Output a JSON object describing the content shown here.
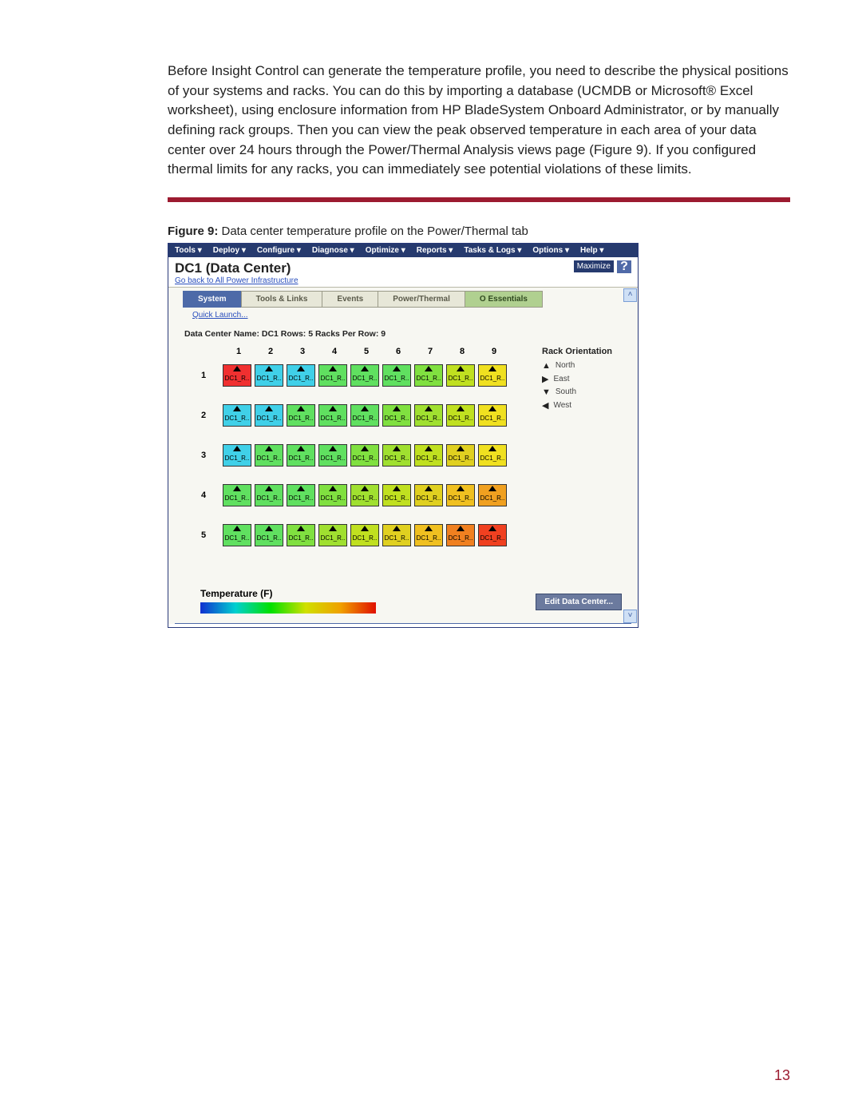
{
  "paragraph": "Before Insight Control can generate the temperature profile, you need to describe the physical positions of your systems and racks. You can do this by importing a database (UCMDB or Microsoft® Excel worksheet), using enclosure information from HP BladeSystem Onboard Administrator, or by manually defining rack groups. Then you can view the peak observed temperature in each area of your data center over 24 hours through the Power/Thermal Analysis views page (Figure 9). If you configured thermal limits for any racks, you can immediately see potential violations of these limits.",
  "caption_bold": "Figure 9:",
  "caption_rest": " Data center temperature profile on the Power/Thermal tab",
  "menubar": [
    "Tools ▾",
    "Deploy ▾",
    "Configure ▾",
    "Diagnose ▾",
    "Optimize ▾",
    "Reports ▾",
    "Tasks & Logs ▾",
    "Options ▾",
    "Help ▾"
  ],
  "title": "DC1 (Data Center)",
  "sublink": "Go back to All Power Infrastructure",
  "maximize": "Maximize",
  "help_icon": "?",
  "tabs": [
    {
      "label": "System",
      "cls": "active"
    },
    {
      "label": "Tools & Links",
      "cls": ""
    },
    {
      "label": "Events",
      "cls": ""
    },
    {
      "label": "Power/Thermal",
      "cls": ""
    },
    {
      "label": "O Essentials",
      "cls": "green"
    }
  ],
  "quick_launch": "Quick Launch...",
  "meta_line": "Data Center Name:   DC1    Rows:   5    Racks Per Row:   9",
  "cols": [
    "1",
    "2",
    "3",
    "4",
    "5",
    "6",
    "7",
    "8",
    "9"
  ],
  "row_labels": [
    "1",
    "2",
    "3",
    "4",
    "5"
  ],
  "rack_label": "DC1_R..",
  "rack_colors": {
    "rows": [
      [
        "#f03030",
        "#40d0e8",
        "#40d0e8",
        "#60e060",
        "#60e060",
        "#60e060",
        "#80e040",
        "#c0e020",
        "#f0e020"
      ],
      [
        "#40d0e8",
        "#40d0e8",
        "#60e060",
        "#60e060",
        "#60e060",
        "#80e040",
        "#a0e030",
        "#c0e020",
        "#f0e020"
      ],
      [
        "#40d0e8",
        "#60e060",
        "#60e060",
        "#60e060",
        "#80e040",
        "#a0e030",
        "#c0e020",
        "#e0d020",
        "#f0e020"
      ],
      [
        "#60e060",
        "#60e060",
        "#60e060",
        "#80e040",
        "#a0e030",
        "#c0e020",
        "#e0d020",
        "#f0c020",
        "#f0a020"
      ],
      [
        "#60e060",
        "#60e060",
        "#80e040",
        "#a0e030",
        "#c0e020",
        "#e0d020",
        "#f0c020",
        "#f08020",
        "#f04020"
      ]
    ]
  },
  "legend_title": "Rack Orientation",
  "legend_items": [
    {
      "sym": "▲",
      "label": "North"
    },
    {
      "sym": "▶",
      "label": "East"
    },
    {
      "sym": "▼",
      "label": "South"
    },
    {
      "sym": "◀",
      "label": "West"
    }
  ],
  "temp_label": "Temperature (F)",
  "edit_btn": "Edit Data Center...",
  "page_num": "13"
}
